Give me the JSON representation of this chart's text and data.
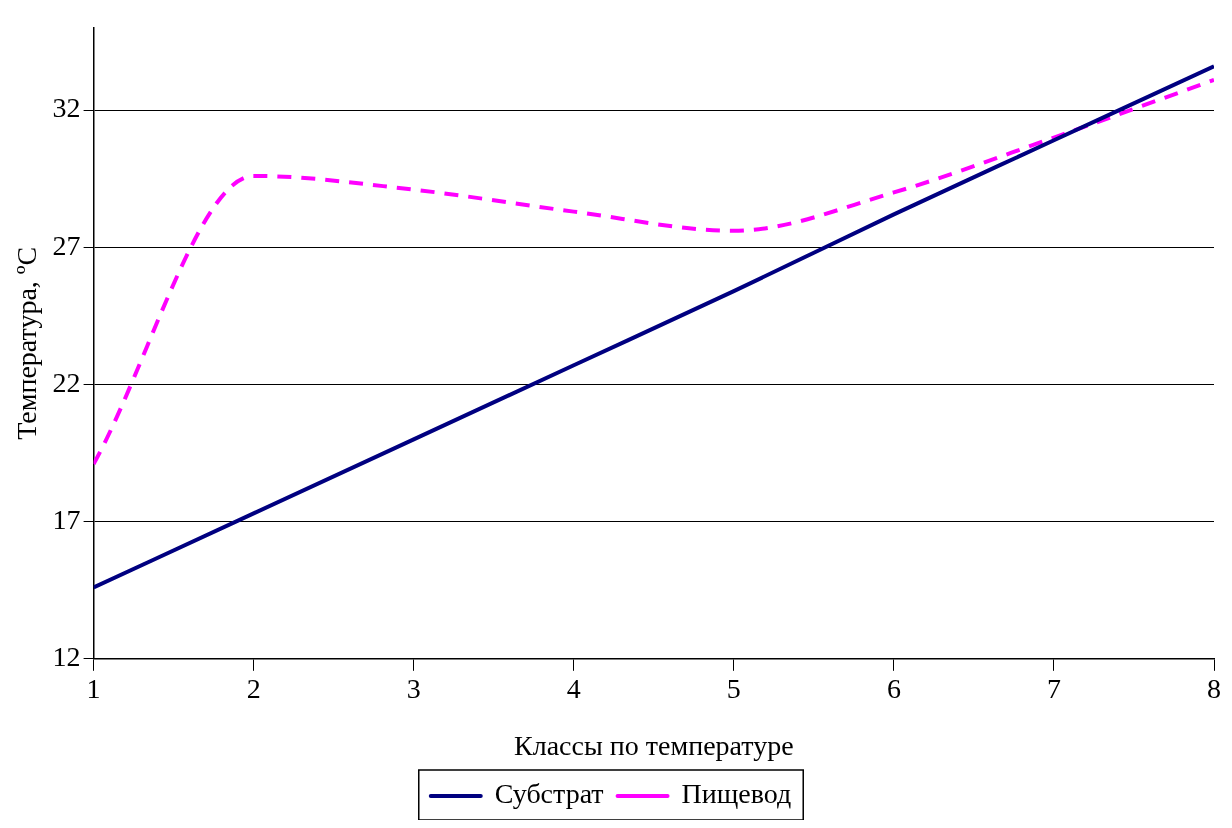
{
  "chart_data": {
    "type": "line",
    "xlabel": "Классы по температуре",
    "ylabel": "Температура, ºC",
    "x": [
      1,
      2,
      3,
      4,
      5,
      6,
      7,
      8
    ],
    "series": [
      {
        "name": "Субстрат",
        "color": "#000080",
        "values": [
          14.6,
          17.3,
          20.0,
          22.7,
          25.4,
          28.2,
          30.9,
          33.6
        ],
        "line_style": "solid"
      },
      {
        "name": "Пищевод",
        "color": "#ff00ff",
        "values": [
          19.1,
          29.6,
          29.1,
          28.3,
          27.6,
          29.0,
          31.0,
          33.1
        ],
        "line_style": "dashed"
      }
    ],
    "xlim": [
      1,
      8
    ],
    "xticks": [
      1,
      2,
      3,
      4,
      5,
      6,
      7,
      8
    ],
    "ylim": [
      12,
      35
    ],
    "yticks": [
      12,
      17,
      22,
      27,
      32
    ],
    "grid": "y",
    "legend": "bottom",
    "marker": "none"
  }
}
